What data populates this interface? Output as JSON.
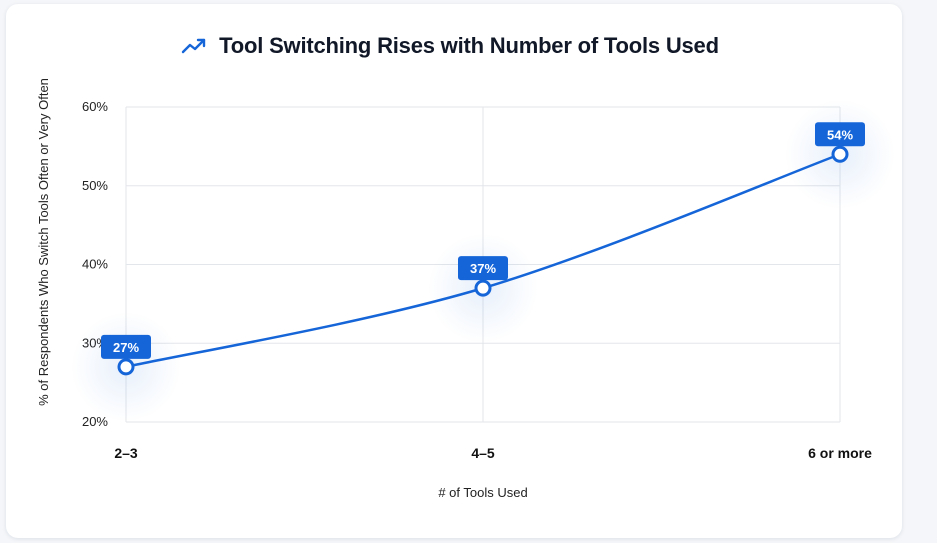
{
  "colors": {
    "accent": "#1565d8",
    "grid": "#e3e6ea",
    "label_bg": "#1565d8"
  },
  "header": {
    "icon": "trending-up-icon",
    "title": "Tool Switching Rises with Number of Tools Used"
  },
  "chart_data": {
    "type": "line",
    "title": "Tool Switching Rises with Number of Tools Used",
    "xlabel": "# of Tools Used",
    "ylabel": "% of Respondents Who Switch Tools Often or Very Often",
    "categories": [
      "2–3",
      "4–5",
      "6 or more"
    ],
    "series": [
      {
        "values": [
          27,
          37,
          54
        ]
      }
    ],
    "data_labels": [
      "27%",
      "37%",
      "54%"
    ],
    "ylim": [
      20,
      60
    ],
    "yticks": [
      20,
      30,
      40,
      50,
      60
    ],
    "ytick_labels": [
      "20%",
      "30%",
      "40%",
      "50%",
      "60%"
    ],
    "grid": true,
    "legend": "none"
  }
}
